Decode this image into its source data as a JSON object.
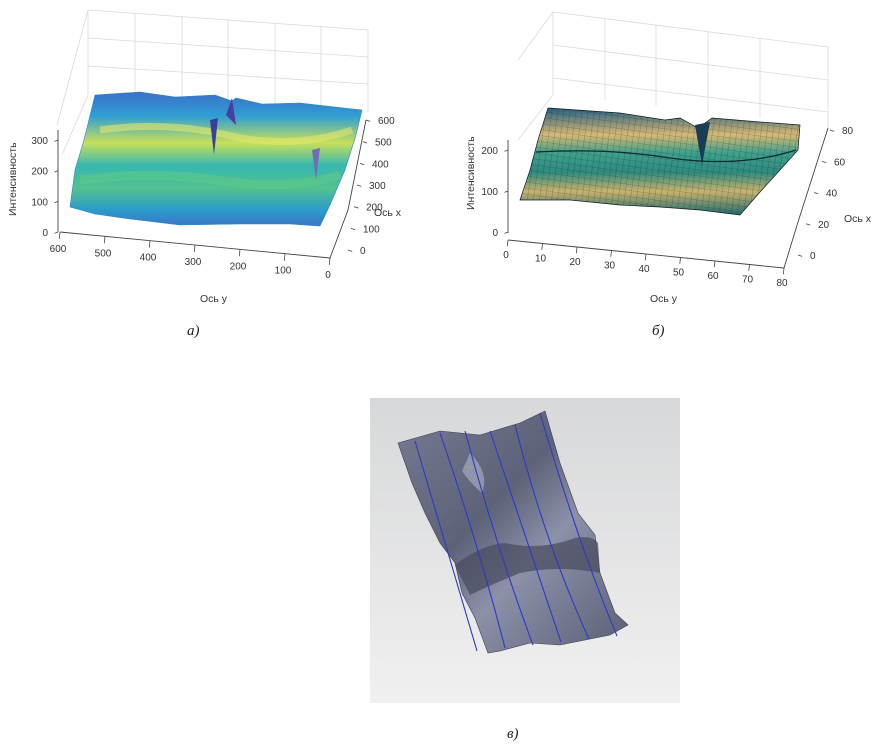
{
  "chart_data": [
    {
      "type": "surface",
      "panel": "a",
      "caption": "а)",
      "xlabel": "Ось y",
      "ylabel": "Ось x",
      "zlabel": "Интенсивность",
      "x_ticks": [
        "600",
        "500",
        "400",
        "300",
        "200",
        "100",
        "0"
      ],
      "y_ticks": [
        "0",
        "100",
        "200",
        "300",
        "400",
        "500",
        "600"
      ],
      "z_ticks": [
        "0",
        "100",
        "200",
        "300"
      ],
      "xlim": [
        0,
        600
      ],
      "ylim": [
        0,
        600
      ],
      "zlim": [
        0,
        300
      ],
      "colormap": "parula",
      "colors": {
        "low": "#3b3f9b",
        "mid": "#26a0c8",
        "high": "#d9e04a"
      },
      "grid": true
    },
    {
      "type": "surface",
      "panel": "б",
      "caption": "б)",
      "xlabel": "Ось y",
      "ylabel": "Ось x",
      "zlabel": "Интенсивность",
      "x_ticks": [
        "0",
        "10",
        "20",
        "30",
        "40",
        "50",
        "60",
        "70",
        "80"
      ],
      "y_ticks": [
        "0",
        "20",
        "40",
        "60",
        "80"
      ],
      "z_ticks": [
        "0",
        "100",
        "200"
      ],
      "xlim": [
        0,
        80
      ],
      "ylim": [
        0,
        80
      ],
      "zlim": [
        0,
        250
      ],
      "colormap": "parula-mesh",
      "colors": {
        "low": "#1e6e7a",
        "mid": "#3fb58e",
        "high": "#e8c27a"
      },
      "grid": true
    }
  ],
  "panel_c": {
    "caption": "в)",
    "colors": {
      "background": "#c9cacb",
      "surface": "#6b6f86",
      "lines": "#2e38c8"
    }
  }
}
